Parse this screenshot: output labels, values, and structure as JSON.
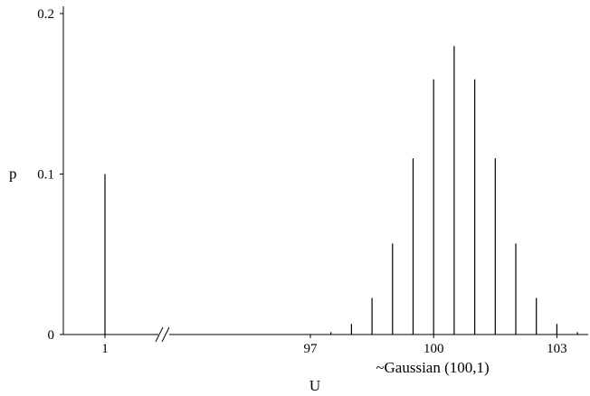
{
  "chart_data": {
    "type": "bar",
    "xlabel": "U",
    "ylabel": "p",
    "ylim": [
      0,
      0.2
    ],
    "y_ticks": [
      {
        "value": 0,
        "label": "0"
      },
      {
        "value": 0.1,
        "label": "0.1"
      },
      {
        "value": 0.2,
        "label": "0.2"
      }
    ],
    "x_ticks": [
      {
        "value": 1,
        "label": "1"
      },
      {
        "value": 97,
        "label": "97"
      },
      {
        "value": 100,
        "label": "100"
      },
      {
        "value": 103,
        "label": "103"
      }
    ],
    "axis_break": "between 1 and 97",
    "annotation": "~Gaussian (100,1)",
    "grid": false,
    "bar_style": "thin vertical lines",
    "colors": {
      "lines": "#000000",
      "background": "#ffffff"
    },
    "series": [
      {
        "points": [
          {
            "x": 1,
            "y": 0.1
          },
          {
            "x": 97,
            "y": 0.0003
          },
          {
            "x": 97.5,
            "y": 0.0015
          },
          {
            "x": 98,
            "y": 0.0066
          },
          {
            "x": 98.5,
            "y": 0.0228
          },
          {
            "x": 99,
            "y": 0.0567
          },
          {
            "x": 99.5,
            "y": 0.1098
          },
          {
            "x": 100,
            "y": 0.159
          },
          {
            "x": 100.5,
            "y": 0.1798
          },
          {
            "x": 101,
            "y": 0.159
          },
          {
            "x": 101.5,
            "y": 0.1098
          },
          {
            "x": 102,
            "y": 0.0567
          },
          {
            "x": 102.5,
            "y": 0.0228
          },
          {
            "x": 103,
            "y": 0.0066
          },
          {
            "x": 103.5,
            "y": 0.0015
          }
        ]
      }
    ]
  }
}
